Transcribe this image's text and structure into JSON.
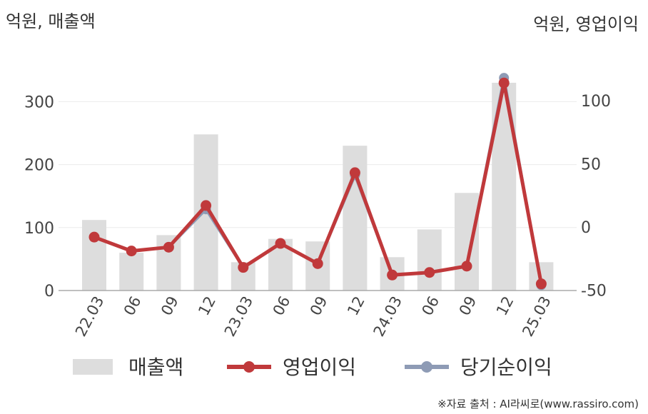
{
  "chart_data": {
    "type": "bar+line",
    "unit_left": "억원, 매출액",
    "unit_right": "억원, 영업이익",
    "categories": [
      "22.03",
      "06",
      "09",
      "12",
      "23.03",
      "06",
      "09",
      "12",
      "24.03",
      "06",
      "09",
      "12",
      "25.03"
    ],
    "y_left": {
      "ticks": [
        0,
        100,
        200,
        300
      ],
      "range": [
        0,
        380
      ]
    },
    "y_right": {
      "ticks": [
        -50,
        0,
        50,
        100
      ],
      "range": [
        -50,
        118
      ]
    },
    "series": [
      {
        "name": "매출액",
        "type": "bar",
        "axis": "left",
        "values": [
          112,
          60,
          88,
          248,
          45,
          82,
          78,
          230,
          53,
          97,
          155,
          330,
          45
        ],
        "color": "#dddddd"
      },
      {
        "name": "영업이익",
        "type": "line",
        "axis": "right",
        "values": [
          -8,
          -19,
          -16,
          17,
          -32,
          -13,
          -29,
          43,
          -38,
          -36,
          -31,
          114,
          -45
        ],
        "color": "#c0393b"
      },
      {
        "name": "당기순이익",
        "type": "line",
        "axis": "right",
        "values": [
          -8,
          -19,
          -16,
          14,
          -32,
          -13,
          -29,
          41,
          -38,
          -36,
          -31,
          118,
          -46
        ],
        "color": "#8e9bb5"
      }
    ],
    "legend_position": "bottom",
    "grid": true
  },
  "source": "※자료 출처 : AI라씨로(www.rassiro.com)"
}
